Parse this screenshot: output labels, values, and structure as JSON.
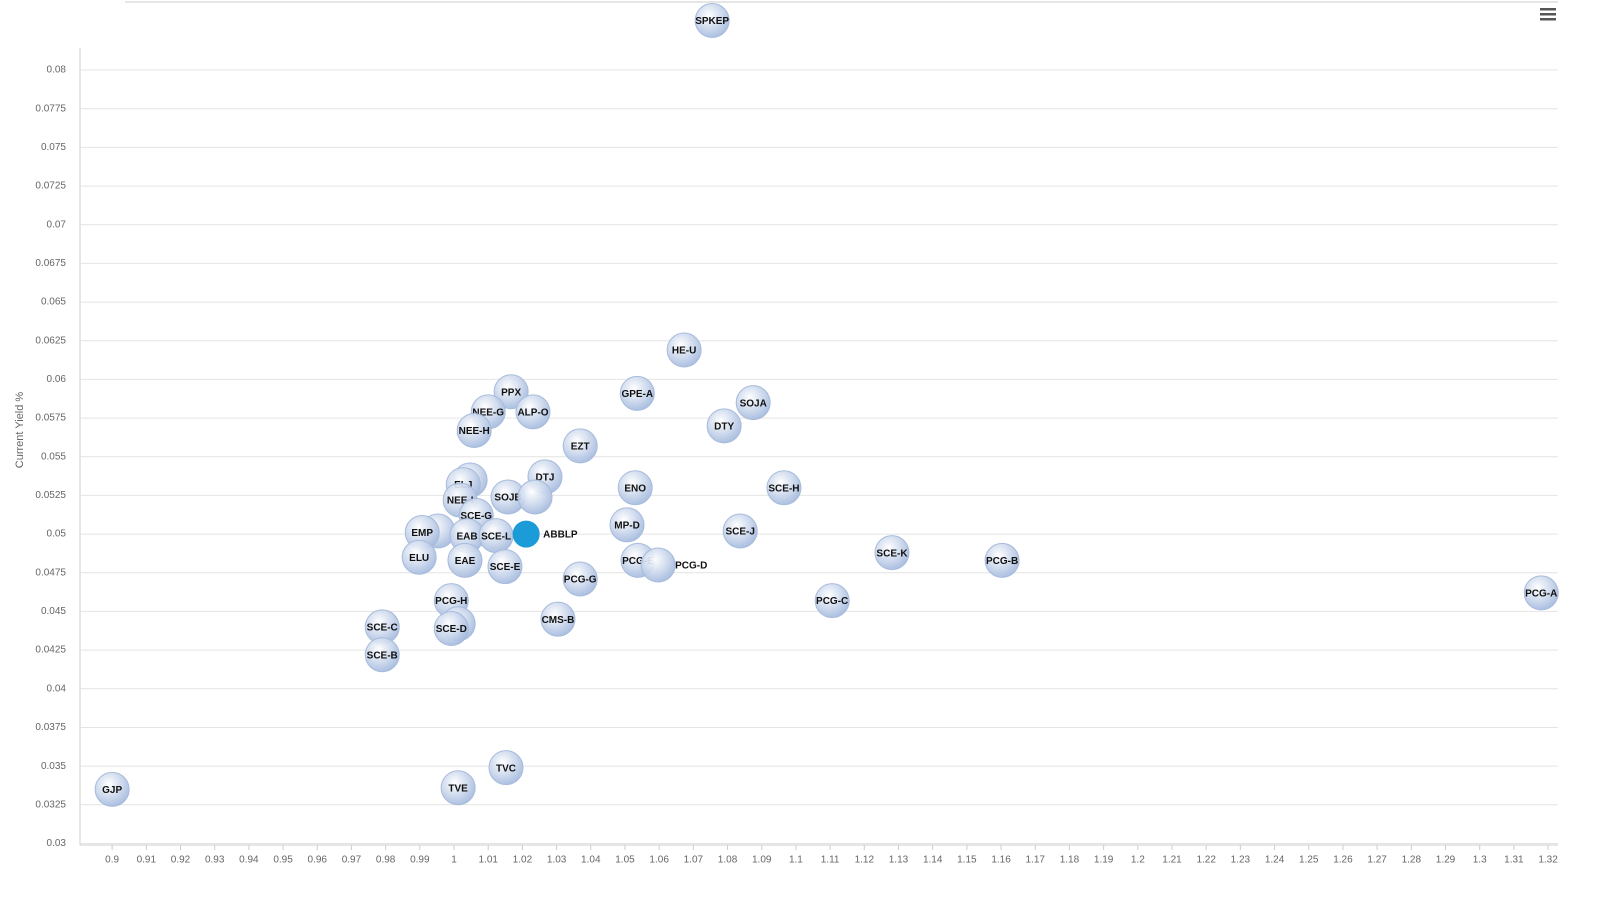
{
  "chart_data": {
    "type": "scatter",
    "y_label": "Current Yield %",
    "xlim": [
      0.8906,
      1.3229
    ],
    "ylim": [
      0.0299,
      0.0844
    ],
    "grid": true,
    "xticks": [
      0.9,
      0.91,
      0.92,
      0.93,
      0.94,
      0.95,
      0.96,
      0.97,
      0.98,
      0.99,
      1,
      1.01,
      1.02,
      1.03,
      1.04,
      1.05,
      1.06,
      1.07,
      1.08,
      1.09,
      1.1,
      1.11,
      1.12,
      1.13,
      1.14,
      1.15,
      1.16,
      1.17,
      1.18,
      1.19,
      1.2,
      1.21,
      1.22,
      1.23,
      1.24,
      1.25,
      1.26,
      1.27,
      1.28,
      1.29,
      1.3,
      1.31,
      1.32
    ],
    "yticks": [
      0.03,
      0.0325,
      0.035,
      0.0375,
      0.04,
      0.0425,
      0.045,
      0.0475,
      0.05,
      0.0525,
      0.055,
      0.0575,
      0.06,
      0.0625,
      0.065,
      0.0675,
      0.07,
      0.0725,
      0.075,
      0.0775,
      0.08
    ],
    "series": [
      {
        "color": "#b7c9e6",
        "label_position": "inside",
        "label_color": "#111",
        "labels": [
          "SPKEP",
          "HE-U",
          "PPX",
          "GPE-A",
          "SOJA",
          "NEE-G",
          "ALP-O",
          "DTY",
          "NEE-H",
          "EZT",
          "DTJ",
          null,
          "ELJ",
          "SCE-H",
          "ENO",
          "SOJB",
          null,
          "NEE-I",
          "SCE-G",
          "MP-D",
          "SCE-J",
          null,
          "EMP",
          "EAB",
          "SCE-L",
          "SCE-K",
          "PCG-E",
          "PCG-B",
          "ELU",
          "EAE",
          "SCE-E",
          "PCG-G",
          "PCG-A",
          "PCG-C",
          "PCG-H",
          "CMS-B",
          "SCE-C",
          null,
          "SCE-D",
          "SCE-B",
          "TVC",
          "GJP",
          "TVE"
        ],
        "x": [
          1.0755,
          1.0673,
          1.0167,
          1.0536,
          1.0875,
          1.01,
          1.0231,
          1.079,
          1.0059,
          1.0369,
          1.0266,
          1.0047,
          1.0027,
          1.0965,
          1.053,
          1.0158,
          1.0237,
          1.0018,
          1.0065,
          1.0506,
          1.0837,
          0.9953,
          0.9907,
          1.0038,
          1.0123,
          1.1281,
          1.0538,
          1.1603,
          0.9898,
          1.0032,
          1.0149,
          1.0369,
          1.318,
          1.1106,
          0.9992,
          1.0304,
          0.979,
          1.0012,
          0.9992,
          0.979,
          1.0152,
          0.9,
          1.0012
        ],
        "values": [
          0.0832,
          0.0619,
          0.0592,
          0.0591,
          0.0585,
          0.0579,
          0.0579,
          0.057,
          0.0567,
          0.0557,
          0.0537,
          0.0535,
          0.0532,
          0.053,
          0.053,
          0.0524,
          0.0524,
          0.0522,
          0.0512,
          0.0506,
          0.0502,
          0.0502,
          0.0501,
          0.0499,
          0.0499,
          0.0488,
          0.0483,
          0.0483,
          0.0485,
          0.0483,
          0.0479,
          0.0471,
          0.0462,
          0.0457,
          0.0457,
          0.0445,
          0.044,
          0.0442,
          0.0439,
          0.0422,
          0.0349,
          0.0335,
          0.0336
        ]
      },
      {
        "color": "#b7c9e6",
        "label_position": "outside",
        "label_color": "#111",
        "labels": [
          "PCG-D"
        ],
        "x": [
          1.0597
        ],
        "values": [
          0.048
        ]
      },
      {
        "color": "#1b9bd7",
        "label_position": "outside",
        "label_color": "#1b9bd7",
        "labels": [
          "ABBLP"
        ],
        "x": [
          1.0211
        ],
        "values": [
          0.05
        ]
      }
    ]
  }
}
